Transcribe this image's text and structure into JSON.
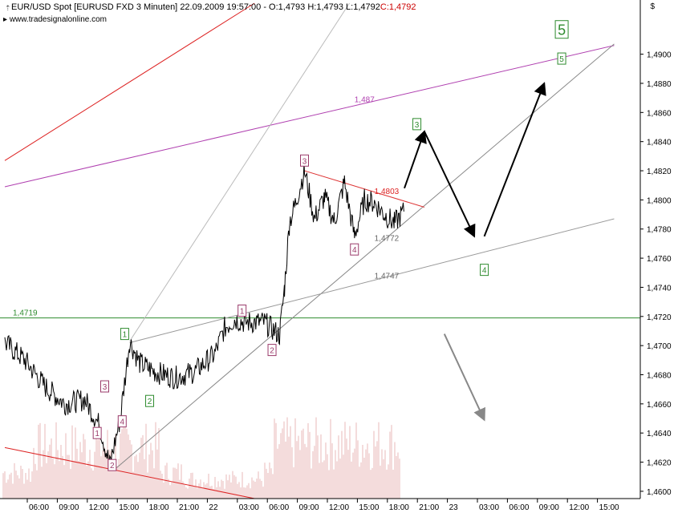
{
  "header": {
    "instrument": "EUR/USD Spot [EURUSD FXD",
    "interval": "3 Minuten]",
    "datetime": "22.09.2009 19:57:00",
    "ohl": "- O:1,4793 H:1,4793 L:1,4792",
    "close": "C:1,4792",
    "website": "www.tradesignalonline.com",
    "currency": "$"
  },
  "chart_data": {
    "type": "line",
    "title": "EUR/USD Spot [EURUSD FXD 3 Minuten]",
    "ylim": [
      1.4595,
      1.4935
    ],
    "y_ticks": [
      "1,4600",
      "1,4620",
      "1,4640",
      "1,4660",
      "1,4680",
      "1,4700",
      "1,4720",
      "1,4740",
      "1,4760",
      "1,4780",
      "1,4800",
      "1,4820",
      "1,4840",
      "1,4860",
      "1,4880",
      "1,4900"
    ],
    "x_ticks": [
      "06:00",
      "09:00",
      "12:00",
      "15:00",
      "18:00",
      "21:00",
      "22",
      "03:00",
      "06:00",
      "09:00",
      "12:00",
      "15:00",
      "18:00",
      "21:00",
      "23",
      "03:00",
      "06:00",
      "09:00",
      "12:00",
      "15:00"
    ],
    "grid": false,
    "price_series": {
      "name": "EUR/USD 3 min",
      "x": [
        "21.09 04:00",
        "21.09 06:00",
        "21.09 08:00",
        "21.09 10:00",
        "21.09 12:00",
        "21.09 13:30",
        "21.09 14:30",
        "21.09 15:30",
        "21.09 16:30",
        "21.09 17:30",
        "21.09 19:00",
        "21.09 21:00",
        "21.09 23:00",
        "22.09 01:00",
        "22.09 02:00",
        "22.09 03:00",
        "22.09 04:00",
        "22.09 06:00",
        "22.09 07:30",
        "22.09 08:00",
        "22.09 08:30",
        "22.09 09:00",
        "22.09 10:00",
        "22.09 11:00",
        "22.09 12:00",
        "22.09 13:00",
        "22.09 14:00",
        "22.09 15:00",
        "22.09 16:00",
        "22.09 17:00",
        "22.09 18:00",
        "22.09 19:00",
        "22.09 19:57"
      ],
      "y": [
        1.4702,
        1.469,
        1.4672,
        1.466,
        1.4663,
        1.4645,
        1.4618,
        1.4648,
        1.4703,
        1.4688,
        1.4682,
        1.4678,
        1.4682,
        1.4694,
        1.4712,
        1.4718,
        1.4716,
        1.4716,
        1.4707,
        1.474,
        1.4785,
        1.4795,
        1.482,
        1.4787,
        1.4802,
        1.4785,
        1.4812,
        1.4775,
        1.48,
        1.4798,
        1.479,
        1.4784,
        1.4792
      ]
    },
    "horizontal_line": {
      "label": "1,4719",
      "value": 1.4719,
      "color": "#2e8b2e"
    },
    "trend_lines": [
      {
        "id": "red-upper",
        "color": "#dd2222",
        "x": [
          "21.09 04:00",
          "22.09 05:00"
        ],
        "y": [
          1.4827,
          1.4935
        ]
      },
      {
        "id": "purple-upper",
        "color": "#b040b0",
        "x": [
          "21.09 04:00",
          "23.09 17:00"
        ],
        "y": [
          1.4809,
          1.4906
        ]
      },
      {
        "id": "red-lower",
        "color": "#dd2222",
        "x": [
          "21.09 04:00",
          "22.09 05:00"
        ],
        "y": [
          1.463,
          1.4595
        ]
      },
      {
        "id": "gray-upper-steep",
        "color": "#bbbbbb",
        "x": [
          "21.09 16:30",
          "22.09 14:30"
        ],
        "y": [
          1.4703,
          1.4935
        ]
      },
      {
        "id": "gray-lower-steep",
        "color": "#888888",
        "x": [
          "21.09 15:00",
          "23.09 17:00"
        ],
        "y": [
          1.4615,
          1.4907
        ]
      },
      {
        "id": "gray-middle",
        "color": "#999999",
        "x": [
          "21.09 16:30",
          "23.09 17:00"
        ],
        "y": [
          1.4702,
          1.4787
        ]
      },
      {
        "id": "red-resistance",
        "color": "#dd3333",
        "x": [
          "22.09 10:00",
          "22.09 22:00"
        ],
        "y": [
          1.482,
          1.4795
        ]
      }
    ],
    "forecast_arrows": [
      {
        "color": "#000000",
        "x": [
          "22.09 20:00",
          "22.09 22:00"
        ],
        "y": [
          1.4808,
          1.4847
        ]
      },
      {
        "color": "#000000",
        "x": [
          "22.09 22:00",
          "23.09 03:00"
        ],
        "y": [
          1.4847,
          1.4775
        ]
      },
      {
        "color": "#000000",
        "x": [
          "23.09 04:00",
          "23.09 10:00"
        ],
        "y": [
          1.4775,
          1.488
        ]
      },
      {
        "color": "#888888",
        "x": [
          "23.09 00:00",
          "23.09 04:00"
        ],
        "y": [
          1.4708,
          1.4649
        ]
      }
    ],
    "price_labels": [
      {
        "text": "1,487",
        "x": "22.09 15:00",
        "y": 1.4867,
        "color": "#b040b0"
      },
      {
        "text": "1,4803",
        "x": "22.09 17:00",
        "y": 1.4804,
        "color": "#dd2222"
      },
      {
        "text": "1,4772",
        "x": "22.09 17:00",
        "y": 1.4772,
        "color": "#666666"
      },
      {
        "text": "1,4747",
        "x": "22.09 17:00",
        "y": 1.4746,
        "color": "#666666"
      }
    ],
    "wave_labels": [
      {
        "text": "1",
        "x": "21.09 13:15",
        "y": 1.464,
        "color": "#9a3a6a"
      },
      {
        "text": "2",
        "x": "21.09 14:45",
        "y": 1.4618,
        "color": "#9a3a6a"
      },
      {
        "text": "3",
        "x": "21.09 14:00",
        "y": 1.4672,
        "color": "#9a3a6a"
      },
      {
        "text": "4",
        "x": "21.09 15:45",
        "y": 1.4648,
        "color": "#9a3a6a"
      },
      {
        "text": "1",
        "x": "21.09 16:00",
        "y": 1.4708,
        "color": "#2e8b2e"
      },
      {
        "text": "2",
        "x": "21.09 18:30",
        "y": 1.4662,
        "color": "#2e8b2e"
      },
      {
        "text": "1",
        "x": "22.09 03:45",
        "y": 1.4724,
        "color": "#9a3a6a"
      },
      {
        "text": "2",
        "x": "22.09 06:45",
        "y": 1.4697,
        "color": "#9a3a6a"
      },
      {
        "text": "3",
        "x": "22.09 10:00",
        "y": 1.4827,
        "color": "#9a3a6a"
      },
      {
        "text": "4",
        "x": "22.09 15:00",
        "y": 1.4766,
        "color": "#9a3a6a"
      },
      {
        "text": "3",
        "x": "22.09 21:15",
        "y": 1.4852,
        "color": "#2e8b2e"
      },
      {
        "text": "4",
        "x": "23.09 04:00",
        "y": 1.4752,
        "color": "#2e8b2e"
      },
      {
        "text": "5",
        "x": "23.09 11:45",
        "y": 1.4897,
        "color": "#2e8b2e"
      },
      {
        "text": "5",
        "x": "23.09 11:45",
        "y": 1.4917,
        "color": "#2e8b2e"
      }
    ]
  }
}
